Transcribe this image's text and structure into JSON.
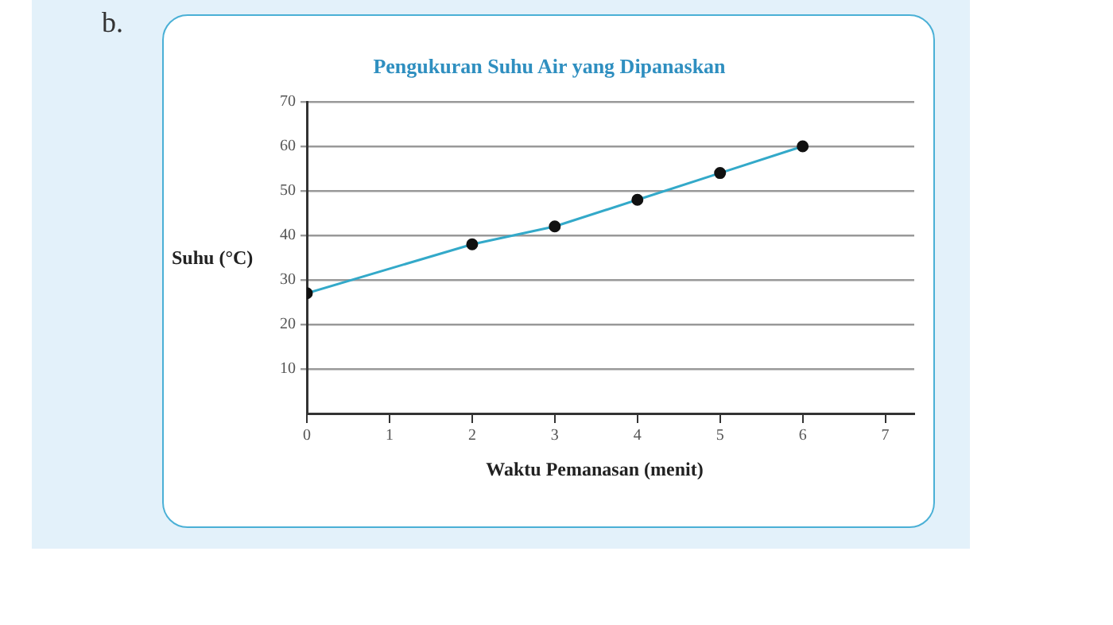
{
  "chart_data": {
    "type": "line",
    "title": "Pengukuran Suhu Air yang Dipanaskan",
    "xlabel": "Waktu Pemanasan (menit)",
    "ylabel": "Suhu (°C)",
    "annotations": [
      "b."
    ],
    "x": [
      0,
      2,
      3,
      4,
      5,
      6
    ],
    "series": [
      {
        "color": "#33a9c9",
        "values": [
          27,
          38,
          42,
          48,
          54,
          60
        ]
      }
    ],
    "xlim": [
      0,
      7.35
    ],
    "xticks": [
      0,
      1,
      2,
      3,
      4,
      5,
      6,
      7
    ],
    "ylim": [
      0,
      70
    ],
    "yticks": [
      10,
      20,
      30,
      40,
      50,
      60,
      70
    ],
    "grid": "y",
    "legend": false,
    "marker": "circle",
    "line_style": "solid"
  }
}
